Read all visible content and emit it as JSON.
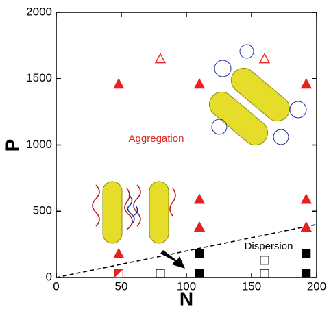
{
  "chart_data": {
    "type": "scatter",
    "xlabel": "N",
    "ylabel": "P",
    "xlim": [
      0,
      200
    ],
    "ylim": [
      0,
      2000
    ],
    "xticks": [
      0,
      50,
      100,
      150,
      200
    ],
    "yticks": [
      0,
      500,
      1000,
      1500,
      2000
    ],
    "annotations": [
      "Aggregation",
      "Dispersion"
    ],
    "series": [
      {
        "marker": "triangle",
        "filled": true,
        "color": "#e8201e",
        "x": [
          48,
          110,
          192,
          110,
          192,
          110,
          192,
          48
        ],
        "values": [
          1460,
          1460,
          1460,
          590,
          590,
          380,
          380,
          180
        ]
      },
      {
        "marker": "triangle",
        "filled": false,
        "color": "#e8201e",
        "x": [
          80,
          160
        ],
        "values": [
          1650,
          1650
        ]
      },
      {
        "marker": "square",
        "filled": true,
        "color": "#000000",
        "x": [
          110,
          110,
          192,
          192
        ],
        "values": [
          180,
          30,
          180,
          30
        ]
      },
      {
        "marker": "square",
        "filled": false,
        "color": "#000000",
        "x": [
          80,
          160,
          160
        ],
        "values": [
          30,
          130,
          30
        ]
      },
      {
        "marker": "half-square",
        "filled": true,
        "color": "#e8201e",
        "x": [
          48
        ],
        "values": [
          30
        ]
      }
    ],
    "boundary": {
      "x": [
        0,
        200
      ],
      "values": [
        0,
        400
      ],
      "color": "#000000"
    }
  }
}
